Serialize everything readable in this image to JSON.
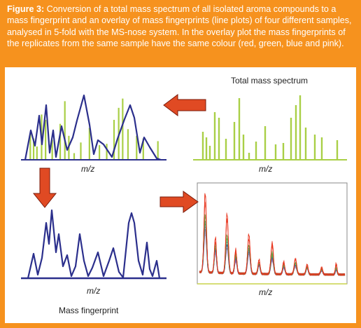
{
  "caption": {
    "label": "Figure 3:",
    "text": " Conversion of a total mass spectrum of all isolated aroma compounds to a mass fingerprint and an overlay of mass fingerprints (line plots) of four different samples, analysed in 5-fold with the MS-nose system. In the overlay plot the mass fingerprints of the replicates from the same sample have the same colour (red, green, blue and pink)."
  },
  "labels": {
    "total_spectrum": "Total mass spectrum",
    "mz_top_left": "m/z",
    "mz_top_right": "m/z",
    "mz_bottom_left": "m/z",
    "mz_bottom_right": "m/z",
    "mass_fingerprint": "Mass fingerprint"
  },
  "colors": {
    "background": "#f6921e",
    "panel": "#ffffff",
    "stick": "#a9cf46",
    "fingerprint": "#2b2f8c",
    "arrow_fill": "#e04a23",
    "arrow_stroke": "#7a1a0a",
    "overlay_red": "#e8341c",
    "overlay_green": "#58b14a",
    "overlay_blue": "#3a48b0",
    "overlay_pink": "#c860b8"
  },
  "icons": [
    "arrow-left-icon",
    "arrow-down-icon",
    "arrow-right-icon"
  ]
}
